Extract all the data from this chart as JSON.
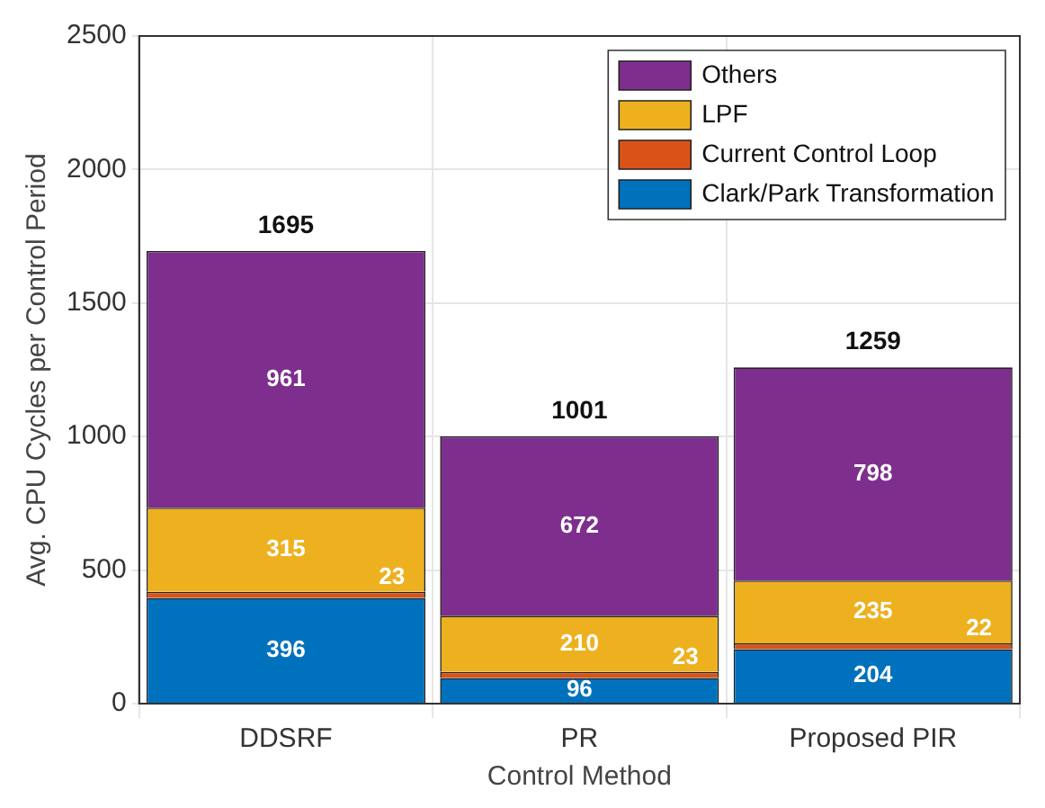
{
  "chart_data": {
    "type": "bar",
    "stacked": true,
    "xlabel": "Control Method",
    "ylabel": "Avg. CPU Cycles per Control Period",
    "categories": [
      "DDSRF",
      "PR",
      "Proposed PIR"
    ],
    "series": [
      {
        "name": "Clark/Park Transformation",
        "color": "#0072bd",
        "values": [
          396,
          96,
          204
        ]
      },
      {
        "name": "Current Control Loop",
        "color": "#d95319",
        "values": [
          23,
          23,
          22
        ]
      },
      {
        "name": "LPF",
        "color": "#edb120",
        "values": [
          315,
          210,
          235
        ]
      },
      {
        "name": "Others",
        "color": "#7e2f8e",
        "values": [
          961,
          672,
          798
        ]
      }
    ],
    "totals": [
      "1695",
      "1001",
      "1259"
    ],
    "data_labels": true,
    "ylim": [
      0,
      2500
    ],
    "yticks": [
      0,
      500,
      1000,
      1500,
      2000,
      2500
    ],
    "grid": true,
    "legend": "top right"
  }
}
